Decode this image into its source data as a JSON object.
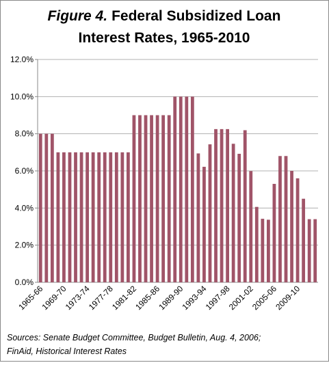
{
  "chart_data": {
    "type": "bar",
    "title": {
      "figure": "Figure 4.",
      "line1": "Federal Subsidized Loan",
      "line2": "Interest Rates, 1965-2010"
    },
    "source": [
      "Sources: Senate Budget Committee, Budget Bulletin, Aug. 4, 2006;",
      "FinAid, Historical Interest Rates"
    ],
    "categories": [
      "1965-66",
      null,
      null,
      null,
      "1969-70",
      null,
      null,
      null,
      "1973-74",
      null,
      null,
      null,
      "1977-78",
      null,
      null,
      null,
      "1981-82",
      null,
      null,
      null,
      "1985-86",
      null,
      null,
      null,
      "1989-90",
      null,
      null,
      null,
      "1993-94",
      null,
      null,
      null,
      "1997-98",
      null,
      null,
      null,
      "2001-02",
      null,
      null,
      null,
      "2005-06",
      null,
      null,
      null,
      "2009-10",
      null,
      null,
      null
    ],
    "values": [
      8,
      8,
      8,
      7,
      7,
      7,
      7,
      7,
      7,
      7,
      7,
      7,
      7,
      7,
      7,
      7,
      9,
      9,
      9,
      9,
      9,
      9,
      9,
      10,
      10,
      10,
      10,
      6.94,
      6.22,
      7.43,
      8.25,
      8.25,
      8.25,
      7.46,
      6.92,
      8.19,
      5.99,
      4.06,
      3.42,
      3.37,
      5.3,
      6.8,
      6.8,
      6.0,
      5.6,
      4.5,
      3.4,
      3.4
    ],
    "color": "#a05468",
    "ylim": [
      0,
      12
    ],
    "yticks": [
      {
        "value": 0,
        "label": "0.0%"
      },
      {
        "value": 2,
        "label": "2.0%"
      },
      {
        "value": 4,
        "label": "4.0%"
      },
      {
        "value": 6,
        "label": "6.0%"
      },
      {
        "value": 8,
        "label": "8.0%"
      },
      {
        "value": 10,
        "label": "10.0%"
      },
      {
        "value": 12,
        "label": "12.0%"
      }
    ],
    "grid": true
  }
}
